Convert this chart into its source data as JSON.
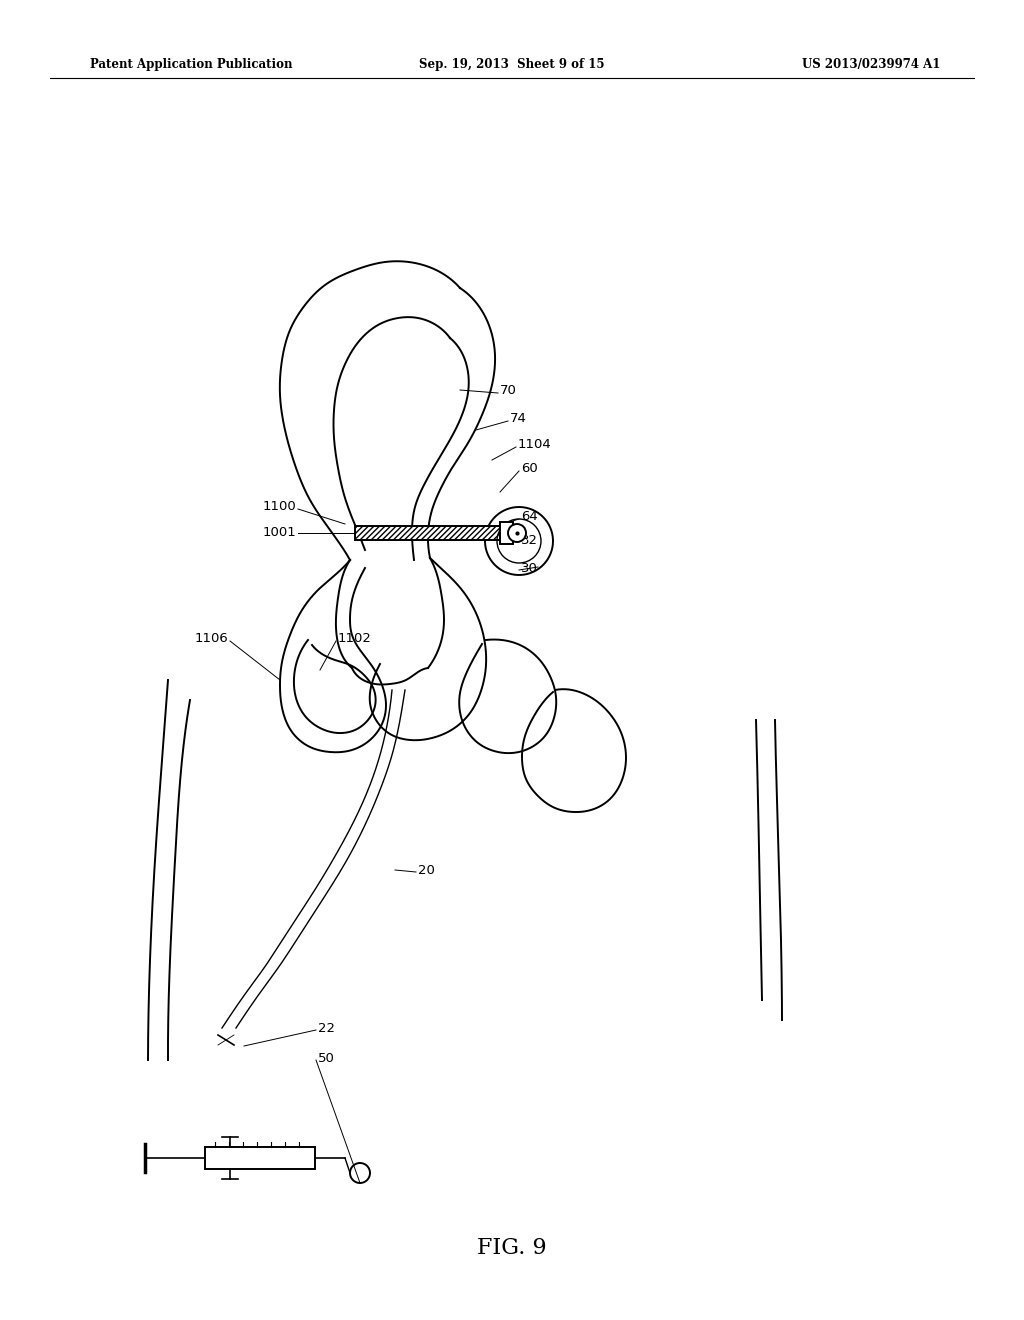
{
  "bg_color": "#ffffff",
  "line_color": "#000000",
  "title": "FIG. 9",
  "header_left": "Patent Application Publication",
  "header_center": "Sep. 19, 2013  Sheet 9 of 15",
  "header_right": "US 2013/0239974 A1",
  "fig_title": "FIG. 9",
  "lw_main": 1.4,
  "lw_thin": 1.0,
  "lw_hair": 0.7
}
